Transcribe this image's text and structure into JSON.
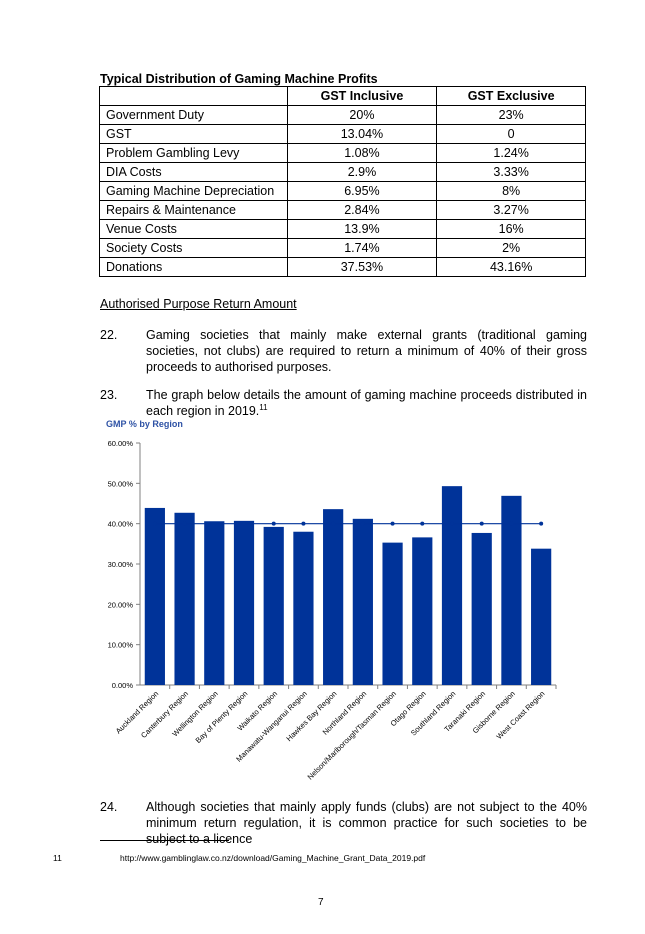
{
  "table": {
    "title": "Typical Distribution of Gaming Machine Profits",
    "headers": [
      "",
      "GST Inclusive",
      "GST Exclusive"
    ],
    "rows": [
      [
        "Government Duty",
        "20%",
        "23%"
      ],
      [
        "GST",
        "13.04%",
        "0"
      ],
      [
        "Problem Gambling Levy",
        "1.08%",
        "1.24%"
      ],
      [
        "DIA Costs",
        "2.9%",
        "3.33%"
      ],
      [
        "Gaming Machine Depreciation",
        "6.95%",
        "8%"
      ],
      [
        "Repairs & Maintenance",
        "2.84%",
        "3.27%"
      ],
      [
        "Venue Costs",
        "13.9%",
        "16%"
      ],
      [
        "Society Costs",
        "1.74%",
        "2%"
      ],
      [
        "Donations",
        "37.53%",
        "43.16%"
      ]
    ]
  },
  "section_heading": "Authorised Purpose Return Amount",
  "paragraphs": [
    {
      "num": "22.",
      "text": "Gaming societies that mainly make external grants (traditional gaming societies, not clubs) are required to return a minimum of 40% of their gross proceeds to authorised purposes."
    },
    {
      "num": "23.",
      "text": "The graph below details the amount of gaming machine proceeds distributed in each region in 2019.",
      "footnote_ref": "11"
    },
    {
      "num": "24.",
      "text": "Although societies that mainly apply funds (clubs) are not subject to the 40% minimum return regulation, it is common practice for such societies to be subject to a licence"
    }
  ],
  "chart_data": {
    "type": "bar",
    "title": "GMP % by Region",
    "categories": [
      "Auckland Region",
      "Canterbury Region",
      "Wellington Region",
      "Bay of Plenty Region",
      "Waikato Region",
      "Manawatu-Wanganui Region",
      "Hawkes Bay Region",
      "Northland Region",
      "Nelson/Marlborough/Tasman Region",
      "Otago Region",
      "Southland Region",
      "Taranaki Region",
      "Gisborne Region",
      "West Coast Region"
    ],
    "series": [
      {
        "values": [
          43.9,
          42.7,
          40.6,
          40.7,
          39.2,
          38.0,
          43.6,
          41.2,
          35.3,
          36.6,
          49.3,
          37.7,
          46.9,
          33.8
        ]
      },
      {
        "values": [
          40,
          40,
          40,
          40,
          40,
          40,
          40,
          40,
          40,
          40,
          40,
          40,
          40,
          40
        ]
      }
    ],
    "yticks": [
      "0.00%",
      "10.00%",
      "20.00%",
      "30.00%",
      "40.00%",
      "50.00%",
      "60.00%"
    ],
    "ylim": [
      0,
      60
    ],
    "bar_color": "#003399",
    "line_color": "#003399",
    "grid": false,
    "legend": "none"
  },
  "footnote": {
    "num": "11",
    "text": "http://www.gamblinglaw.co.nz/download/Gaming_Machine_Grant_Data_2019.pdf"
  },
  "page_number": "7"
}
